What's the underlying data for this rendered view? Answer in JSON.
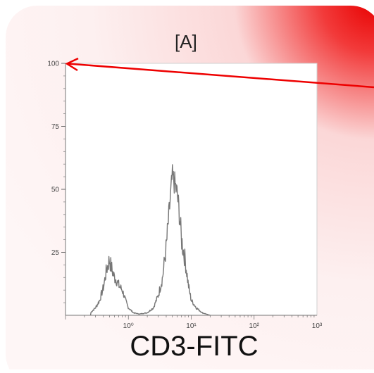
{
  "panel": {
    "label": "[A]"
  },
  "chart_data": {
    "type": "histogram",
    "title": "",
    "xlabel": "CD3-FITC",
    "ylabel": "",
    "xscale": "log",
    "xlim": [
      0.1,
      1000
    ],
    "ylim": [
      0,
      100
    ],
    "y_ticks": [
      25,
      50,
      75,
      100
    ],
    "y_tick_labels": [
      "25",
      "50",
      "75",
      "100"
    ],
    "x_ticks": [
      1,
      10,
      100,
      1000
    ],
    "x_tick_labels": [
      "10⁰",
      "10¹",
      "10²",
      "10³"
    ],
    "series": [
      {
        "x": [
          0.25,
          0.3,
          0.35,
          0.4,
          0.45,
          0.5,
          0.55,
          0.6,
          0.65,
          0.7,
          0.8,
          0.9,
          1.0,
          1.2,
          1.5,
          2.0,
          2.5,
          3.0,
          3.5,
          4.0,
          4.5,
          5.0,
          5.5,
          6.0,
          6.5,
          7.0,
          8.0,
          9.0,
          10.0,
          12.0,
          15.0,
          20.0
        ],
        "y": [
          1,
          3,
          6,
          11,
          18,
          22,
          18,
          15,
          14,
          12,
          10,
          6,
          3,
          1,
          0.5,
          1,
          3,
          8,
          15,
          27,
          42,
          55,
          52,
          48,
          40,
          30,
          22,
          12,
          6,
          3,
          1,
          0
        ]
      }
    ],
    "colors": {
      "series": "#777777",
      "arrow": "#ee0000"
    },
    "annotation": {
      "type": "arrow",
      "points_to_y": 100
    },
    "grid": false,
    "legend": "none"
  }
}
